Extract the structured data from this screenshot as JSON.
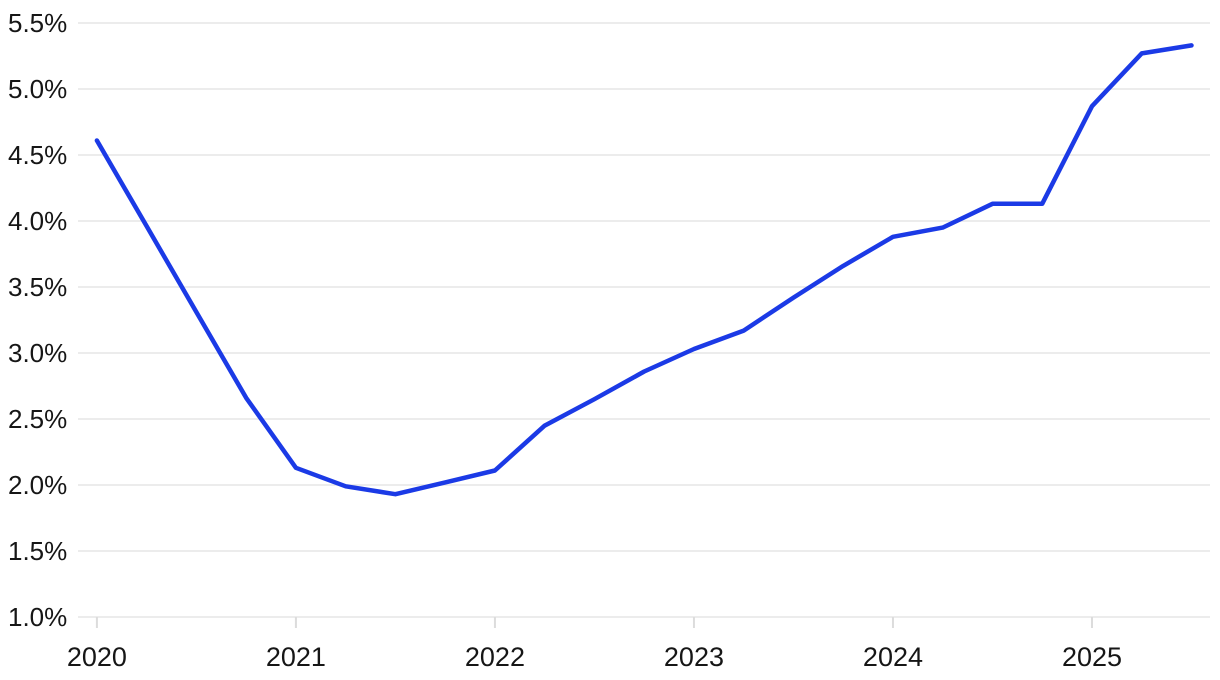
{
  "chart_data": {
    "type": "line",
    "title": "",
    "xlabel": "",
    "ylabel": "",
    "x": [
      2020.0,
      2020.25,
      2020.5,
      2020.75,
      2021.0,
      2021.25,
      2021.5,
      2021.75,
      2022.0,
      2022.25,
      2022.5,
      2022.75,
      2023.0,
      2023.25,
      2023.5,
      2023.75,
      2024.0,
      2024.25,
      2024.5,
      2024.75,
      2025.0,
      2025.25,
      2025.5
    ],
    "series": [
      {
        "name": "rate-percent",
        "color": "#1b3ae6",
        "values": [
          4.61,
          3.96,
          3.31,
          2.66,
          2.13,
          1.99,
          1.93,
          2.02,
          2.11,
          2.45,
          2.65,
          2.86,
          3.03,
          3.17,
          3.42,
          3.66,
          3.88,
          3.95,
          4.13,
          4.13,
          4.87,
          5.27,
          5.33
        ]
      }
    ],
    "x_ticks": {
      "values": [
        2020,
        2021,
        2022,
        2023,
        2024,
        2025
      ],
      "labels": [
        "2020",
        "2021",
        "2022",
        "2023",
        "2024",
        "2025"
      ]
    },
    "y_ticks": {
      "values": [
        1.0,
        1.5,
        2.0,
        2.5,
        3.0,
        3.5,
        4.0,
        4.5,
        5.0,
        5.5
      ],
      "labels": [
        "1.0%",
        "1.5%",
        "2.0%",
        "2.5%",
        "3.0%",
        "3.5%",
        "4.0%",
        "4.5%",
        "5.0%",
        "5.5%"
      ]
    },
    "xlim": [
      2019.905,
      2025.593
    ],
    "ylim": [
      1.0,
      5.5
    ],
    "grid": "horizontal",
    "legend": "none",
    "line_width": 4.5,
    "colors": {
      "line": "#1b3ae6",
      "gridline": "#e5e5e5",
      "tick_mark": "#dcdcdc",
      "tick_label": "#161616",
      "background": "#ffffff"
    }
  }
}
